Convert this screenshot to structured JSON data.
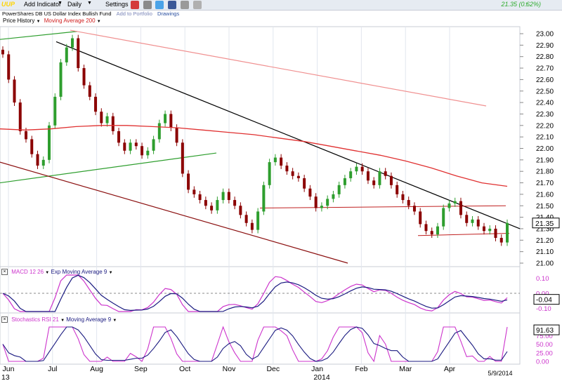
{
  "toolbar": {
    "ticker": "UUP",
    "add_indicator": "Add Indicator",
    "interval": "Daily",
    "settings": "Settings",
    "price": "21.35 (0.62%)",
    "fund_name": "PowerShares DB US Dollar Index Bullish Fund",
    "add_portfolio": "Add to Portfolio",
    "drawings": "Drawings"
  },
  "indicators": {
    "price_history": "Price History",
    "moving_average": "Moving Average 200",
    "macd": "MACD 12 26",
    "macd_signal": "Exp Moving Average 9",
    "stoch": "Stochastics RSI 21",
    "stoch_signal": "Moving Average 9"
  },
  "colors": {
    "up": "#2e9e2e",
    "down": "#8b0000",
    "ma200": "#e03030",
    "macd": "#cc33cc",
    "signal": "#1a1a80",
    "toolbar": "#e6ebf2"
  },
  "chart_data": {
    "type": "candlestick",
    "price_axis": {
      "ticks": [
        "23.00",
        "22.90",
        "22.80",
        "22.70",
        "22.60",
        "22.50",
        "22.40",
        "22.30",
        "22.20",
        "22.10",
        "22.00",
        "21.90",
        "21.80",
        "21.70",
        "21.60",
        "21.50",
        "21.40",
        "21.30",
        "21.20",
        "21.10",
        "21.00"
      ],
      "ylim": [
        21.0,
        23.0
      ],
      "last": "21.35"
    },
    "x_axis": {
      "labels": [
        "Jun",
        "Jul",
        "Aug",
        "Sep",
        "Oct",
        "Nov",
        "Dec",
        "Jan",
        "Feb",
        "Mar",
        "Apr"
      ],
      "year_left": "13",
      "year_mid": "2014",
      "end_date": "5/9/2014"
    },
    "close": [
      22.82,
      22.6,
      22.4,
      22.15,
      22.08,
      21.95,
      21.85,
      21.9,
      22.2,
      22.45,
      22.75,
      22.88,
      22.96,
      22.7,
      22.55,
      22.45,
      22.32,
      22.22,
      22.28,
      22.15,
      22.05,
      21.98,
      22.05,
      22.02,
      21.94,
      21.98,
      22.08,
      22.22,
      22.3,
      22.18,
      22.05,
      21.78,
      21.64,
      21.6,
      21.55,
      21.5,
      21.46,
      21.55,
      21.62,
      21.55,
      21.5,
      21.42,
      21.35,
      21.29,
      21.45,
      21.68,
      21.88,
      21.92,
      21.85,
      21.8,
      21.76,
      21.74,
      21.65,
      21.58,
      21.48,
      21.5,
      21.56,
      21.6,
      21.68,
      21.74,
      21.8,
      21.84,
      21.8,
      21.72,
      21.68,
      21.8,
      21.76,
      21.68,
      21.6,
      21.55,
      21.5,
      21.45,
      21.34,
      21.28,
      21.25,
      21.32,
      21.48,
      21.52,
      21.54,
      21.42,
      21.35,
      21.38,
      21.32,
      21.28,
      21.3,
      21.22,
      21.18,
      21.35
    ],
    "ma200": [
      22.17,
      22.16,
      22.17,
      22.19,
      22.2,
      22.2,
      22.19,
      22.18,
      22.16,
      22.14,
      22.12,
      22.09,
      22.06,
      22.02,
      21.98,
      21.94,
      21.89,
      21.83,
      21.76,
      21.7,
      21.67
    ],
    "macd": {
      "ticks": [
        "0.10",
        "0.00",
        "-0.10"
      ],
      "last": "-0.04"
    },
    "stoch_rsi": {
      "ticks": [
        "100.00",
        "75.00",
        "50.00",
        "25.00",
        "0.00"
      ],
      "last": "91.63"
    },
    "annotations": {
      "channel_upper_start": 22.93,
      "channel_upper_end": 21.3
    }
  }
}
